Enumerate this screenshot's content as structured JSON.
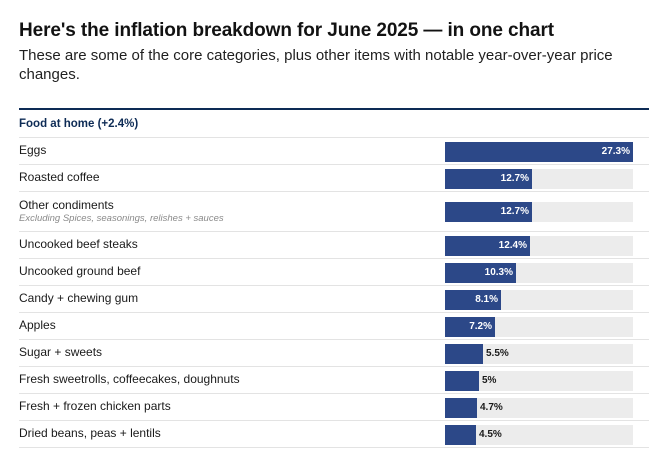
{
  "header": {
    "title": "Here's the inflation breakdown for June 2025 — in one chart",
    "subtitle": "These are some of the core categories, plus other items with notable year-over-year price changes."
  },
  "chart_data": {
    "type": "bar",
    "orientation": "horizontal",
    "section": "Food at home (+2.4%)",
    "categories": [
      "Eggs",
      "Roasted coffee",
      "Other condiments",
      "Uncooked beef steaks",
      "Uncooked ground beef",
      "Candy + chewing gum",
      "Apples",
      "Sugar + sweets",
      "Fresh sweetrolls, coffeecakes, doughnuts",
      "Fresh + frozen chicken parts",
      "Dried beans, peas + lentils"
    ],
    "notes": [
      "",
      "",
      "Excluding Spices, seasonings, relishes + sauces",
      "",
      "",
      "",
      "",
      "",
      "",
      "",
      ""
    ],
    "values": [
      27.3,
      12.7,
      12.7,
      12.4,
      10.3,
      8.1,
      7.2,
      5.5,
      5,
      4.7,
      4.5
    ],
    "value_labels": [
      "27.3%",
      "12.7%",
      "12.7%",
      "12.4%",
      "10.3%",
      "8.1%",
      "7.2%",
      "5.5%",
      "5%",
      "4.7%",
      "4.5%"
    ],
    "xlim": [
      0,
      27.3
    ],
    "colors": {
      "bar": "#2c4888",
      "track": "#ececec",
      "accent": "#0d2b55"
    }
  }
}
